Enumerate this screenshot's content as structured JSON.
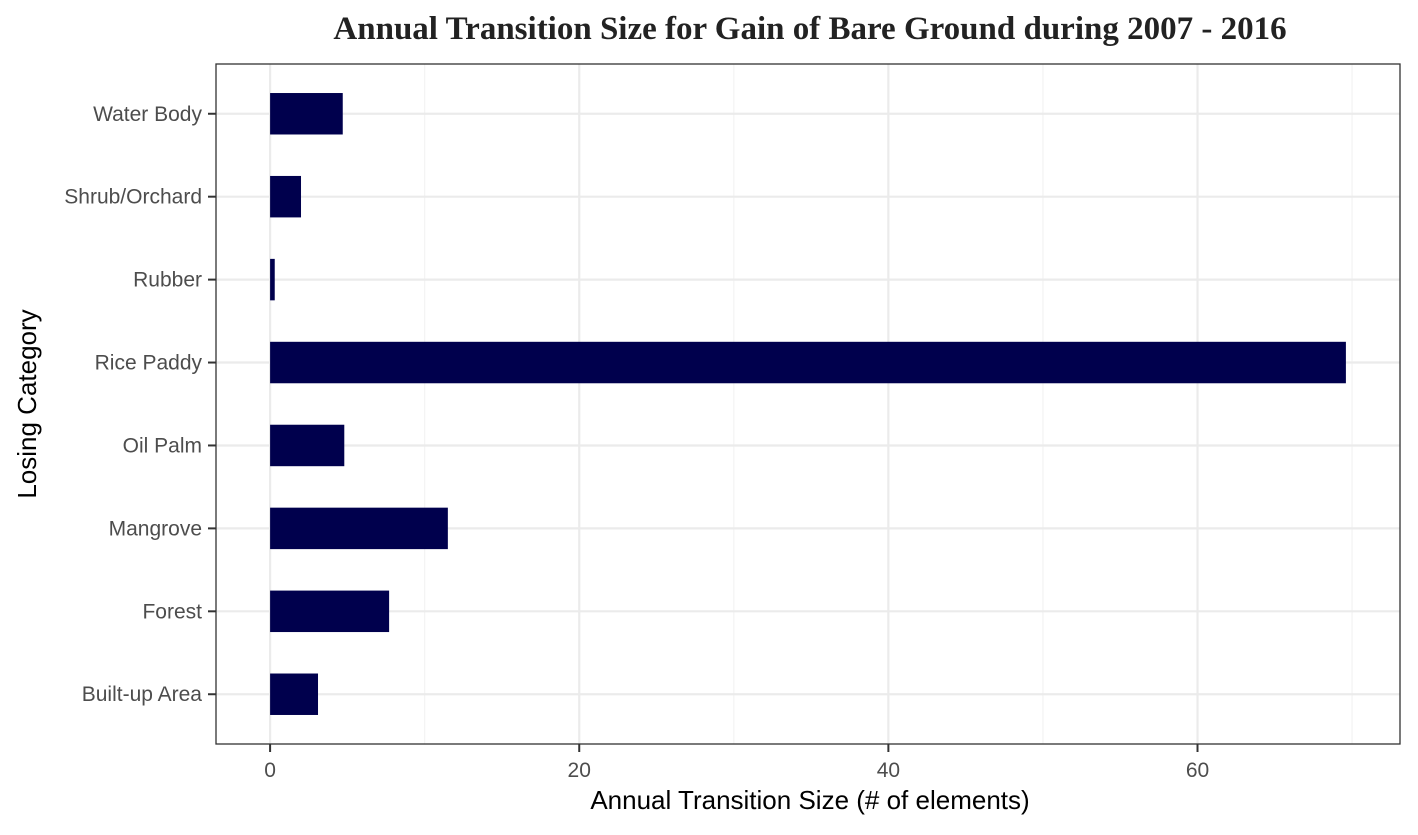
{
  "chart_data": {
    "type": "bar",
    "orientation": "horizontal",
    "title": "Annual Transition Size for Gain of  Bare Ground during 2007 - 2016",
    "xlabel": "Annual Transition Size (# of elements)",
    "ylabel": "Losing Category",
    "categories": [
      "Built-up Area",
      "Forest",
      "Mangrove",
      "Oil Palm",
      "Rice Paddy",
      "Rubber",
      "Shrub/Orchard",
      "Water Body"
    ],
    "values": [
      3.1,
      7.7,
      11.5,
      4.8,
      69.6,
      0.3,
      2.0,
      4.7
    ],
    "xlim": [
      -3.5,
      73.1
    ],
    "xticks": [
      0,
      20,
      40,
      60
    ],
    "bar_color": "#00004d",
    "grid": true,
    "legend": "none"
  }
}
